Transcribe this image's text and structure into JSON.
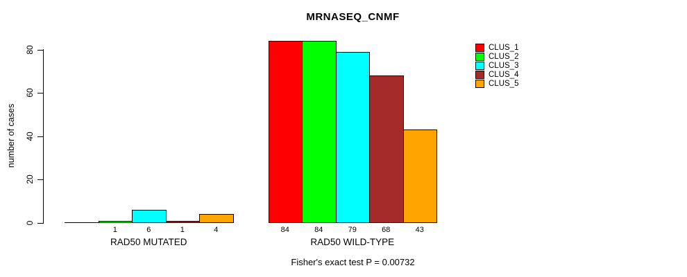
{
  "chart_data": {
    "type": "bar",
    "title": "MRNASEQ_CNMF",
    "ylabel": "number of cases",
    "xlabel": "",
    "categories": [
      "RAD50 MUTATED",
      "RAD50 WILD-TYPE"
    ],
    "series": [
      {
        "name": "CLUS_1",
        "color": "#FF0000",
        "values": [
          0,
          84
        ]
      },
      {
        "name": "CLUS_2",
        "color": "#00FF00",
        "values": [
          1,
          84
        ]
      },
      {
        "name": "CLUS_3",
        "color": "#00FFFF",
        "values": [
          6,
          79
        ]
      },
      {
        "name": "CLUS_4",
        "color": "#A52A2A",
        "values": [
          1,
          68
        ]
      },
      {
        "name": "CLUS_5",
        "color": "#FFA500",
        "values": [
          4,
          43
        ]
      }
    ],
    "bar_labels": [
      [
        "",
        "1",
        "6",
        "1",
        "4"
      ],
      [
        "84",
        "84",
        "79",
        "68",
        "43"
      ]
    ],
    "yticks": [
      0,
      20,
      40,
      60,
      80
    ],
    "ylim": [
      0,
      84
    ],
    "grid": false,
    "legend_position": "right-inside",
    "annotation": "Fisher's exact test P = 0.00732"
  }
}
